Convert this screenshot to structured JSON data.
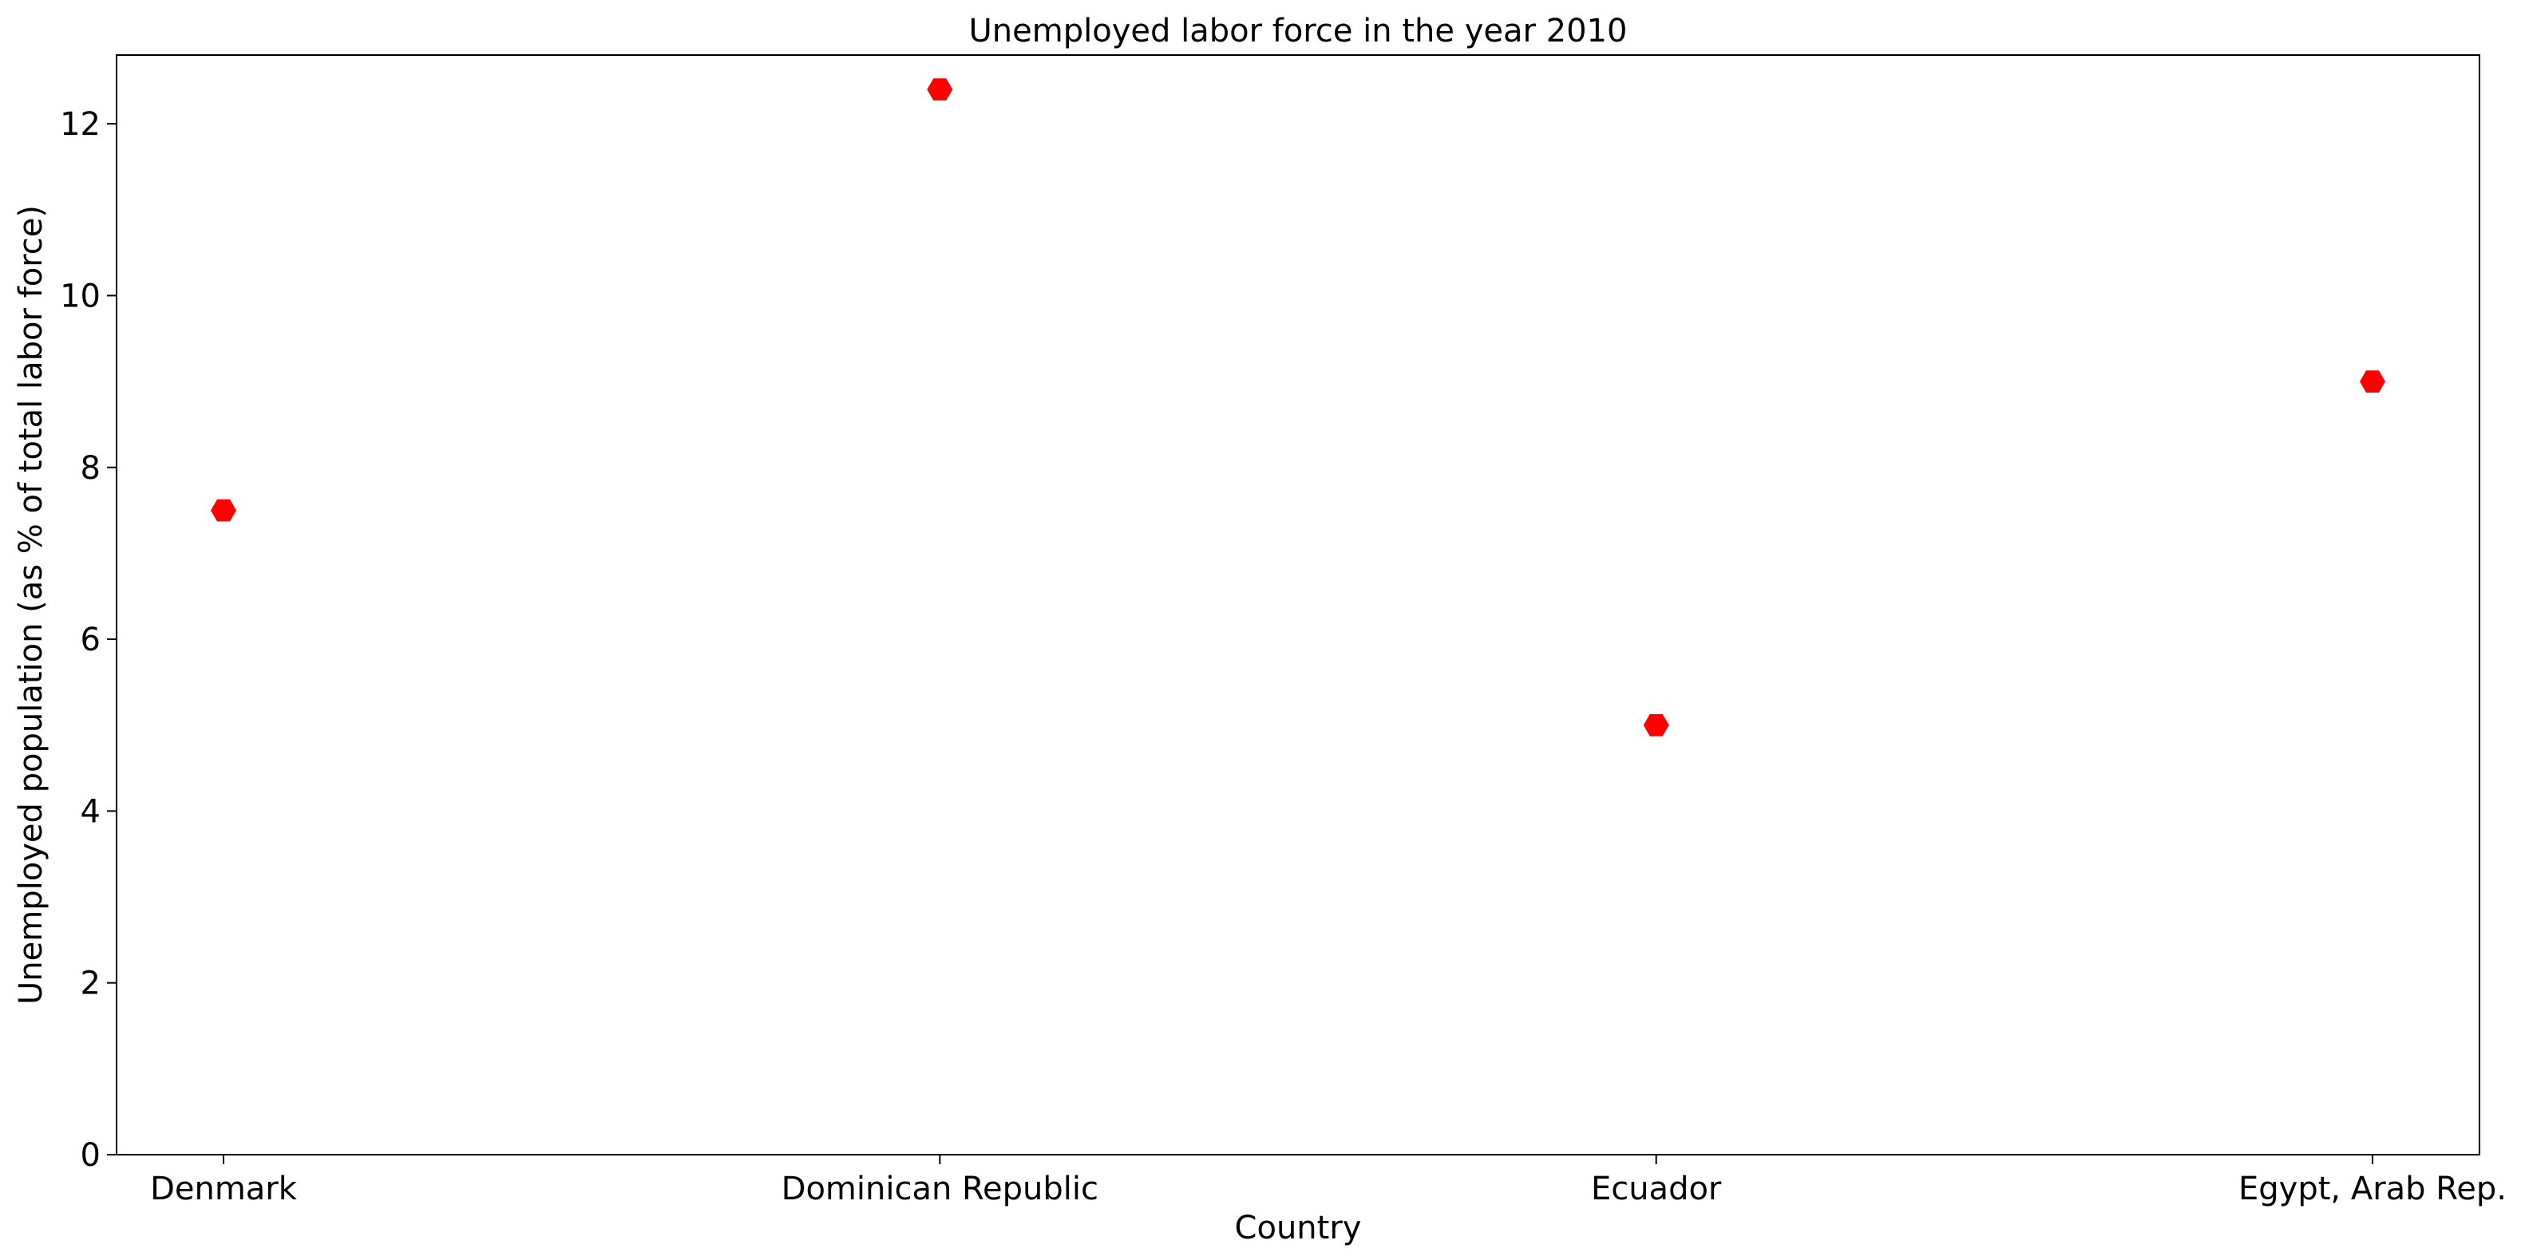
{
  "chart_data": {
    "type": "scatter",
    "title": "Unemployed labor force in the year 2010",
    "xlabel": "Country",
    "ylabel": "Unemployed population (as % of total labor force)",
    "categories": [
      "Denmark",
      "Dominican Republic",
      "Ecuador",
      "Egypt, Arab Rep."
    ],
    "values": [
      7.5,
      12.4,
      5.0,
      9.0
    ],
    "ylim": [
      0,
      12.8
    ],
    "yticks": [
      "0",
      "2",
      "4",
      "6",
      "8",
      "10",
      "12"
    ],
    "grid": false,
    "legend": "none",
    "marker": "hexagon",
    "colors": {
      "marker": "#ff0000",
      "axes": "#000000",
      "background": "#ffffff"
    }
  }
}
